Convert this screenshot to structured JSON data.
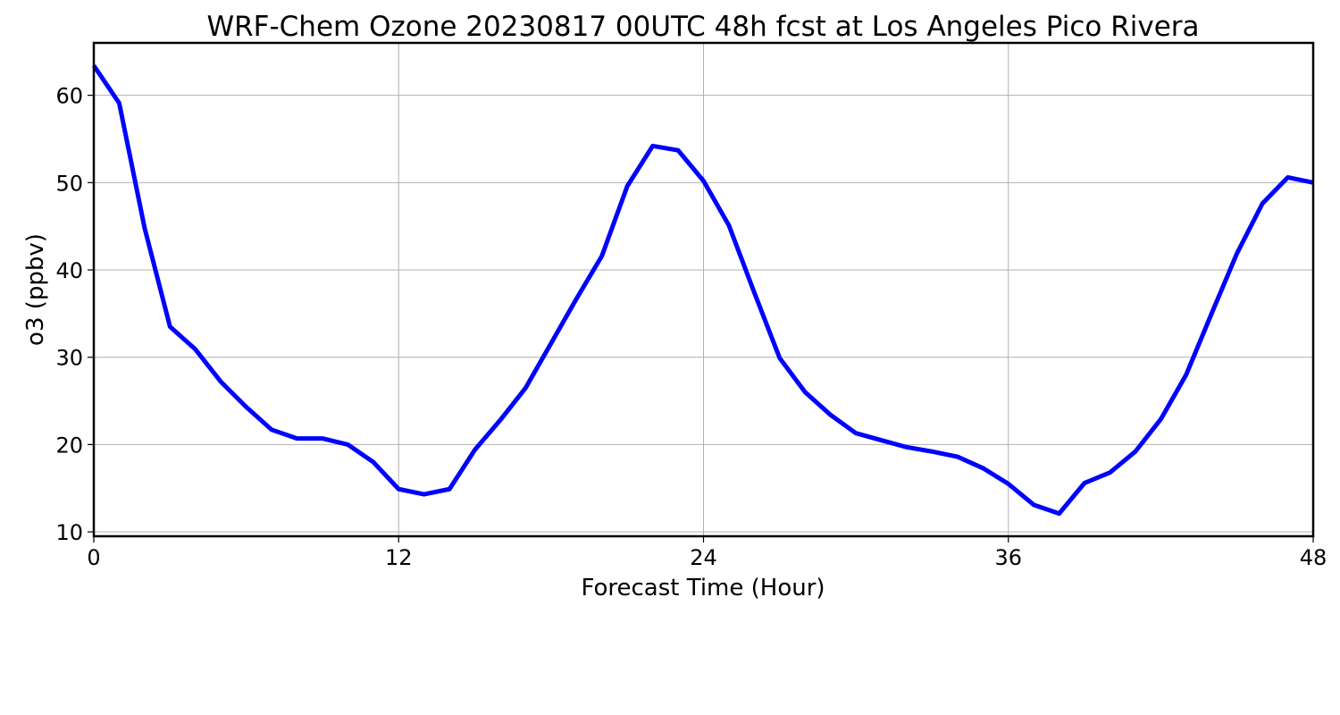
{
  "chart_data": {
    "type": "line",
    "title": "WRF-Chem Ozone  20230817 00UTC 48h fcst at Los Angeles Pico Rivera",
    "xlabel": "Forecast Time (Hour)",
    "ylabel": "o3  (ppbv)",
    "xlim": [
      0,
      48
    ],
    "ylim": [
      9.5,
      66
    ],
    "xticks": [
      0,
      12,
      24,
      36,
      48
    ],
    "yticks": [
      10,
      20,
      30,
      40,
      50,
      60
    ],
    "grid": true,
    "series": [
      {
        "color": "#0000ff",
        "x": [
          0,
          1,
          2,
          3,
          4,
          5,
          6,
          7,
          8,
          9,
          10,
          11,
          12,
          13,
          14,
          15,
          16,
          17,
          18,
          19,
          20,
          21,
          22,
          23,
          24,
          25,
          26,
          27,
          28,
          29,
          30,
          31,
          32,
          33,
          34,
          35,
          36,
          37,
          38,
          39,
          40,
          41,
          42,
          43,
          44,
          45,
          46,
          47,
          48
        ],
        "values": [
          63.4,
          59.1,
          44.8,
          33.5,
          30.9,
          27.2,
          24.3,
          21.7,
          20.7,
          20.7,
          20.0,
          18.0,
          14.9,
          14.3,
          14.9,
          19.4,
          22.8,
          26.5,
          31.6,
          36.7,
          41.6,
          49.6,
          54.2,
          53.7,
          50.2,
          45.1,
          37.4,
          29.9,
          26.0,
          23.4,
          21.3,
          20.5,
          19.7,
          19.2,
          18.6,
          17.3,
          15.5,
          13.1,
          12.1,
          15.6,
          16.8,
          19.2,
          22.9,
          28.0,
          35.0,
          41.9,
          47.6,
          50.6,
          50.0
        ]
      }
    ]
  }
}
